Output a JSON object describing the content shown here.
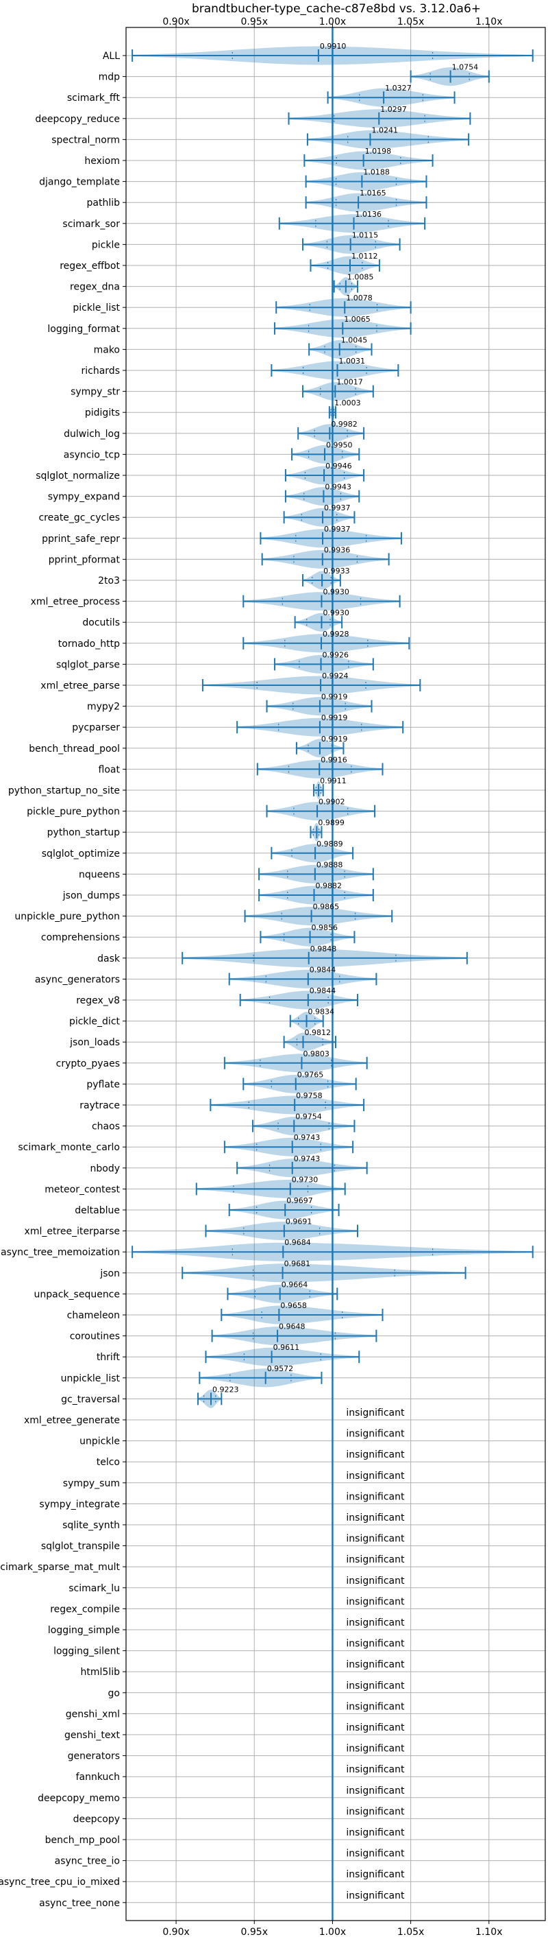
{
  "chart_data": {
    "type": "violin",
    "title": "brandtbucher-type_cache-c87e8bd vs. 3.12.0a6+",
    "xlabel": "",
    "ylabel": "",
    "xlim": [
      0.868,
      1.136
    ],
    "x_ticks": [
      0.9,
      0.95,
      1.0,
      1.05,
      1.1
    ],
    "x_tick_labels": [
      "0.90x",
      "0.95x",
      "1.00x",
      "1.05x",
      "1.10x"
    ],
    "reference_line": 1.0,
    "grid": true,
    "colors": {
      "violin": "#1f77b4",
      "violin_fill": "#1f77b4",
      "grid": "#b0b0b0",
      "axis": "#000000"
    },
    "insignificant_label": "insignificant",
    "benchmarks": [
      {
        "name": "ALL",
        "mean": 0.991,
        "min": 0.872,
        "max": 1.128,
        "label": "0.9910"
      },
      {
        "name": "mdp",
        "mean": 1.0754,
        "min": 1.05,
        "max": 1.1,
        "label": "1.0754"
      },
      {
        "name": "scimark_fft",
        "mean": 1.0327,
        "min": 0.997,
        "max": 1.078,
        "label": "1.0327"
      },
      {
        "name": "deepcopy_reduce",
        "mean": 1.0297,
        "min": 0.972,
        "max": 1.088,
        "label": "1.0297"
      },
      {
        "name": "spectral_norm",
        "mean": 1.0241,
        "min": 0.984,
        "max": 1.087,
        "label": "1.0241"
      },
      {
        "name": "hexiom",
        "mean": 1.0198,
        "min": 0.982,
        "max": 1.064,
        "label": "1.0198"
      },
      {
        "name": "django_template",
        "mean": 1.0188,
        "min": 0.983,
        "max": 1.06,
        "label": "1.0188"
      },
      {
        "name": "pathlib",
        "mean": 1.0165,
        "min": 0.983,
        "max": 1.06,
        "label": "1.0165"
      },
      {
        "name": "scimark_sor",
        "mean": 1.0136,
        "min": 0.966,
        "max": 1.059,
        "label": "1.0136"
      },
      {
        "name": "pickle",
        "mean": 1.0115,
        "min": 0.981,
        "max": 1.043,
        "label": "1.0115"
      },
      {
        "name": "regex_effbot",
        "mean": 1.0112,
        "min": 0.986,
        "max": 1.03,
        "label": "1.0112"
      },
      {
        "name": "regex_dna",
        "mean": 1.0085,
        "min": 1.001,
        "max": 1.016,
        "label": "1.0085"
      },
      {
        "name": "pickle_list",
        "mean": 1.0078,
        "min": 0.964,
        "max": 1.05,
        "label": "1.0078"
      },
      {
        "name": "logging_format",
        "mean": 1.0065,
        "min": 0.963,
        "max": 1.05,
        "label": "1.0065"
      },
      {
        "name": "mako",
        "mean": 1.0045,
        "min": 0.985,
        "max": 1.025,
        "label": "1.0045"
      },
      {
        "name": "richards",
        "mean": 1.0031,
        "min": 0.961,
        "max": 1.042,
        "label": "1.0031"
      },
      {
        "name": "sympy_str",
        "mean": 1.0017,
        "min": 0.981,
        "max": 1.026,
        "label": "1.0017"
      },
      {
        "name": "pidigits",
        "mean": 1.0003,
        "min": 0.998,
        "max": 1.002,
        "label": "1.0003"
      },
      {
        "name": "dulwich_log",
        "mean": 0.9982,
        "min": 0.978,
        "max": 1.02,
        "label": "0.9982"
      },
      {
        "name": "asyncio_tcp",
        "mean": 0.995,
        "min": 0.974,
        "max": 1.017,
        "label": "0.9950"
      },
      {
        "name": "sqlglot_normalize",
        "mean": 0.9946,
        "min": 0.97,
        "max": 1.02,
        "label": "0.9946"
      },
      {
        "name": "sympy_expand",
        "mean": 0.9943,
        "min": 0.97,
        "max": 1.017,
        "label": "0.9943"
      },
      {
        "name": "create_gc_cycles",
        "mean": 0.9937,
        "min": 0.969,
        "max": 1.014,
        "label": "0.9937"
      },
      {
        "name": "pprint_safe_repr",
        "mean": 0.9937,
        "min": 0.954,
        "max": 1.044,
        "label": "0.9937"
      },
      {
        "name": "pprint_pformat",
        "mean": 0.9936,
        "min": 0.955,
        "max": 1.036,
        "label": "0.9936"
      },
      {
        "name": "2to3",
        "mean": 0.9933,
        "min": 0.981,
        "max": 1.005,
        "label": "0.9933"
      },
      {
        "name": "xml_etree_process",
        "mean": 0.993,
        "min": 0.943,
        "max": 1.043,
        "label": "0.9930"
      },
      {
        "name": "docutils",
        "mean": 0.993,
        "min": 0.976,
        "max": 1.006,
        "label": "0.9930"
      },
      {
        "name": "tornado_http",
        "mean": 0.9928,
        "min": 0.943,
        "max": 1.049,
        "label": "0.9928"
      },
      {
        "name": "sqlglot_parse",
        "mean": 0.9926,
        "min": 0.963,
        "max": 1.026,
        "label": "0.9926"
      },
      {
        "name": "xml_etree_parse",
        "mean": 0.9924,
        "min": 0.917,
        "max": 1.056,
        "label": "0.9924"
      },
      {
        "name": "mypy2",
        "mean": 0.9919,
        "min": 0.958,
        "max": 1.025,
        "label": "0.9919"
      },
      {
        "name": "pycparser",
        "mean": 0.9919,
        "min": 0.939,
        "max": 1.045,
        "label": "0.9919"
      },
      {
        "name": "bench_thread_pool",
        "mean": 0.9919,
        "min": 0.977,
        "max": 1.007,
        "label": "0.9919"
      },
      {
        "name": "float",
        "mean": 0.9916,
        "min": 0.952,
        "max": 1.032,
        "label": "0.9916"
      },
      {
        "name": "python_startup_no_site",
        "mean": 0.9911,
        "min": 0.988,
        "max": 0.994,
        "label": "0.9911"
      },
      {
        "name": "pickle_pure_python",
        "mean": 0.9902,
        "min": 0.958,
        "max": 1.027,
        "label": "0.9902"
      },
      {
        "name": "python_startup",
        "mean": 0.9899,
        "min": 0.986,
        "max": 0.993,
        "label": "0.9899"
      },
      {
        "name": "sqlglot_optimize",
        "mean": 0.9889,
        "min": 0.961,
        "max": 1.013,
        "label": "0.9889"
      },
      {
        "name": "nqueens",
        "mean": 0.9888,
        "min": 0.953,
        "max": 1.026,
        "label": "0.9888"
      },
      {
        "name": "json_dumps",
        "mean": 0.9882,
        "min": 0.953,
        "max": 1.026,
        "label": "0.9882"
      },
      {
        "name": "unpickle_pure_python",
        "mean": 0.9865,
        "min": 0.944,
        "max": 1.038,
        "label": "0.9865"
      },
      {
        "name": "comprehensions",
        "mean": 0.9856,
        "min": 0.954,
        "max": 1.014,
        "label": "0.9856"
      },
      {
        "name": "dask",
        "mean": 0.9848,
        "min": 0.904,
        "max": 1.086,
        "label": "0.9848"
      },
      {
        "name": "async_generators",
        "mean": 0.9844,
        "min": 0.934,
        "max": 1.028,
        "label": "0.9844"
      },
      {
        "name": "regex_v8",
        "mean": 0.9844,
        "min": 0.941,
        "max": 1.016,
        "label": "0.9844"
      },
      {
        "name": "pickle_dict",
        "mean": 0.9834,
        "min": 0.973,
        "max": 0.994,
        "label": "0.9834"
      },
      {
        "name": "json_loads",
        "mean": 0.9812,
        "min": 0.969,
        "max": 1.002,
        "label": "0.9812"
      },
      {
        "name": "crypto_pyaes",
        "mean": 0.9803,
        "min": 0.931,
        "max": 1.022,
        "label": "0.9803"
      },
      {
        "name": "pyflate",
        "mean": 0.9765,
        "min": 0.943,
        "max": 1.015,
        "label": "0.9765"
      },
      {
        "name": "raytrace",
        "mean": 0.9758,
        "min": 0.922,
        "max": 1.02,
        "label": "0.9758"
      },
      {
        "name": "chaos",
        "mean": 0.9754,
        "min": 0.949,
        "max": 1.014,
        "label": "0.9754"
      },
      {
        "name": "scimark_monte_carlo",
        "mean": 0.9743,
        "min": 0.931,
        "max": 1.013,
        "label": "0.9743"
      },
      {
        "name": "nbody",
        "mean": 0.9743,
        "min": 0.939,
        "max": 1.022,
        "label": "0.9743"
      },
      {
        "name": "meteor_contest",
        "mean": 0.973,
        "min": 0.913,
        "max": 1.008,
        "label": "0.9730"
      },
      {
        "name": "deltablue",
        "mean": 0.9697,
        "min": 0.934,
        "max": 1.004,
        "label": "0.9697"
      },
      {
        "name": "xml_etree_iterparse",
        "mean": 0.9691,
        "min": 0.919,
        "max": 1.016,
        "label": "0.9691"
      },
      {
        "name": "async_tree_memoization",
        "mean": 0.9684,
        "min": 0.872,
        "max": 1.128,
        "label": "0.9684"
      },
      {
        "name": "json",
        "mean": 0.9681,
        "min": 0.904,
        "max": 1.085,
        "label": "0.9681"
      },
      {
        "name": "unpack_sequence",
        "mean": 0.9664,
        "min": 0.933,
        "max": 1.003,
        "label": "0.9664"
      },
      {
        "name": "chameleon",
        "mean": 0.9658,
        "min": 0.929,
        "max": 1.032,
        "label": "0.9658"
      },
      {
        "name": "coroutines",
        "mean": 0.9648,
        "min": 0.923,
        "max": 1.028,
        "label": "0.9648"
      },
      {
        "name": "thrift",
        "mean": 0.9611,
        "min": 0.919,
        "max": 1.017,
        "label": "0.9611"
      },
      {
        "name": "unpickle_list",
        "mean": 0.9572,
        "min": 0.915,
        "max": 0.993,
        "label": "0.9572"
      },
      {
        "name": "gc_traversal",
        "mean": 0.9223,
        "min": 0.914,
        "max": 0.929,
        "label": "0.9223"
      },
      {
        "name": "xml_etree_generate",
        "insignificant": true
      },
      {
        "name": "unpickle",
        "insignificant": true
      },
      {
        "name": "telco",
        "insignificant": true
      },
      {
        "name": "sympy_sum",
        "insignificant": true
      },
      {
        "name": "sympy_integrate",
        "insignificant": true
      },
      {
        "name": "sqlite_synth",
        "insignificant": true
      },
      {
        "name": "sqlglot_transpile",
        "insignificant": true
      },
      {
        "name": "scimark_sparse_mat_mult",
        "insignificant": true
      },
      {
        "name": "scimark_lu",
        "insignificant": true
      },
      {
        "name": "regex_compile",
        "insignificant": true
      },
      {
        "name": "logging_simple",
        "insignificant": true
      },
      {
        "name": "logging_silent",
        "insignificant": true
      },
      {
        "name": "html5lib",
        "insignificant": true
      },
      {
        "name": "go",
        "insignificant": true
      },
      {
        "name": "genshi_xml",
        "insignificant": true
      },
      {
        "name": "genshi_text",
        "insignificant": true
      },
      {
        "name": "generators",
        "insignificant": true
      },
      {
        "name": "fannkuch",
        "insignificant": true
      },
      {
        "name": "deepcopy_memo",
        "insignificant": true
      },
      {
        "name": "deepcopy",
        "insignificant": true
      },
      {
        "name": "bench_mp_pool",
        "insignificant": true
      },
      {
        "name": "async_tree_io",
        "insignificant": true
      },
      {
        "name": "async_tree_cpu_io_mixed",
        "insignificant": true
      },
      {
        "name": "async_tree_none",
        "insignificant": true
      }
    ]
  }
}
